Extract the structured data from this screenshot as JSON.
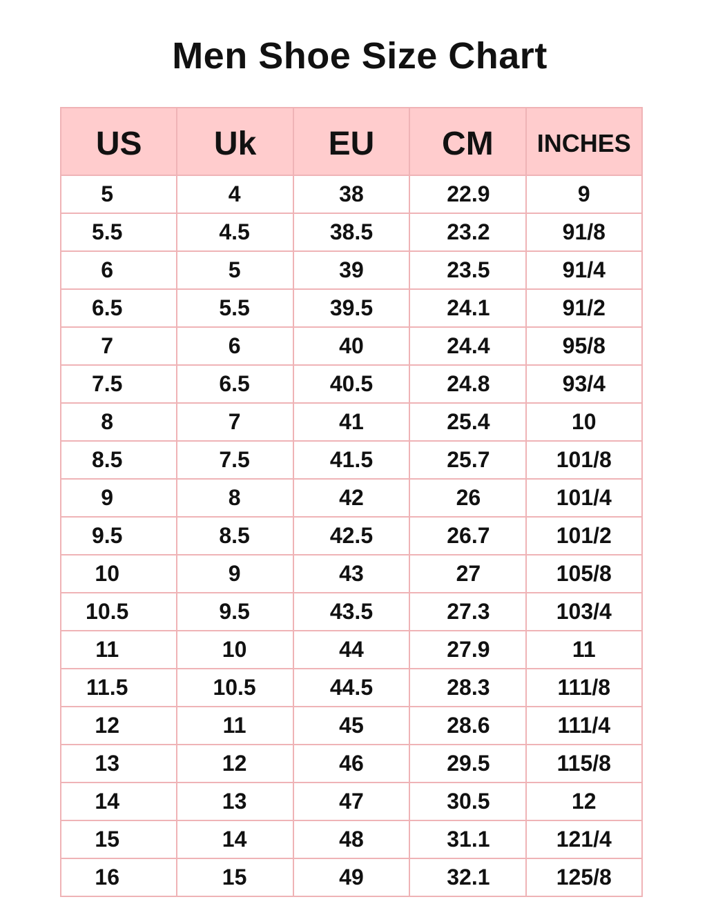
{
  "title": "Men Shoe Size Chart",
  "columns": [
    "US",
    "Uk",
    "EU",
    "CM",
    "INCHES"
  ],
  "rows": [
    [
      "5",
      "4",
      "38",
      "22.9",
      "9"
    ],
    [
      "5.5",
      "4.5",
      "38.5",
      "23.2",
      "91/8"
    ],
    [
      "6",
      "5",
      "39",
      "23.5",
      "91/4"
    ],
    [
      "6.5",
      "5.5",
      "39.5",
      "24.1",
      "91/2"
    ],
    [
      "7",
      "6",
      "40",
      "24.4",
      "95/8"
    ],
    [
      "7.5",
      "6.5",
      "40.5",
      "24.8",
      "93/4"
    ],
    [
      "8",
      "7",
      "41",
      "25.4",
      "10"
    ],
    [
      "8.5",
      "7.5",
      "41.5",
      "25.7",
      "101/8"
    ],
    [
      "9",
      "8",
      "42",
      "26",
      "101/4"
    ],
    [
      "9.5",
      "8.5",
      "42.5",
      "26.7",
      "101/2"
    ],
    [
      "10",
      "9",
      "43",
      "27",
      "105/8"
    ],
    [
      "10.5",
      "9.5",
      "43.5",
      "27.3",
      "103/4"
    ],
    [
      "11",
      "10",
      "44",
      "27.9",
      "11"
    ],
    [
      "11.5",
      "10.5",
      "44.5",
      "28.3",
      "111/8"
    ],
    [
      "12",
      "11",
      "45",
      "28.6",
      "111/4"
    ],
    [
      "13",
      "12",
      "46",
      "29.5",
      "115/8"
    ],
    [
      "14",
      "13",
      "47",
      "30.5",
      "12"
    ],
    [
      "15",
      "14",
      "48",
      "31.1",
      "121/4"
    ],
    [
      "16",
      "15",
      "49",
      "32.1",
      "125/8"
    ]
  ],
  "colors": {
    "header_bg": "#ffcccd",
    "border": "#efb3b6"
  }
}
